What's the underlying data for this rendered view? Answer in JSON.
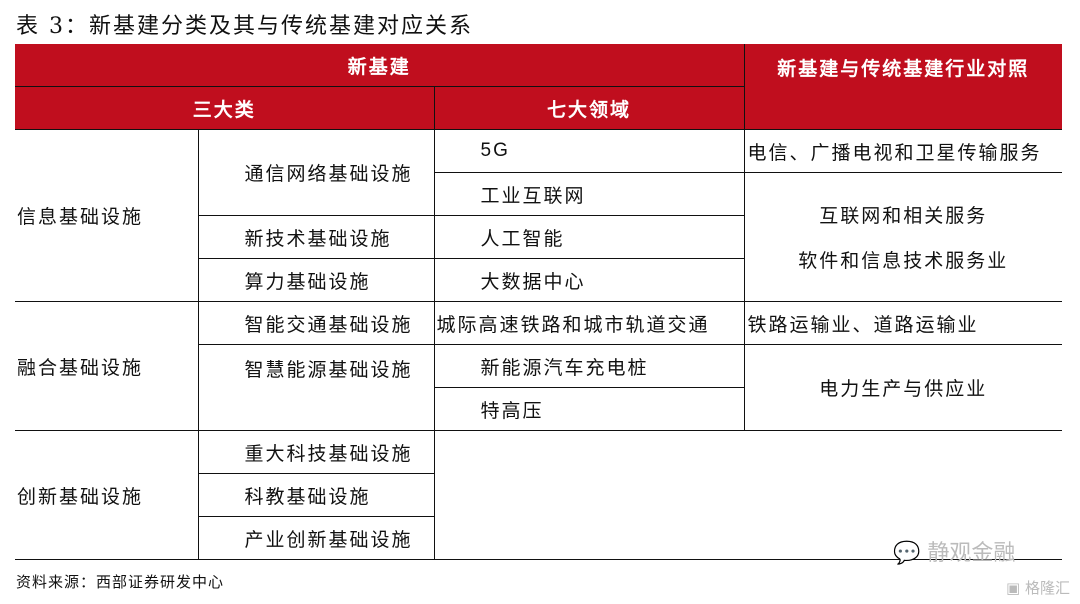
{
  "title": "表 3：新基建分类及其与传统基建对应关系",
  "header": {
    "new_infra": "新基建",
    "traditional": "新基建与传统基建行业对照",
    "three": "三大类",
    "seven": "七大领域"
  },
  "colors": {
    "header_bg": "#c00e1e"
  },
  "rows": {
    "cat1": "信息基础设施",
    "cat2": "融合基础设施",
    "cat3": "创新基础设施",
    "sub": [
      "通信网络基础设施",
      "新技术基础设施",
      "算力基础设施",
      "智能交通基础设施",
      "智慧能源基础设施",
      "重大科技基础设施",
      "科教基础设施",
      "产业创新基础设施"
    ],
    "field": [
      "5G",
      "工业互联网",
      "人工智能",
      "大数据中心",
      "城际高速铁路和城市轨道交通",
      "新能源汽车充电桩",
      "特高压"
    ],
    "trad": [
      "电信、广播电视和卫星传输服务",
      "互联网和相关服务",
      "软件和信息技术服务业",
      "铁路运输业、道路运输业",
      "电力生产与供应业"
    ]
  },
  "source": "资料来源：西部证券研发中心",
  "watermark": {
    "text": "静观金融",
    "icon": "wechat-icon",
    "logo": "格隆汇"
  }
}
